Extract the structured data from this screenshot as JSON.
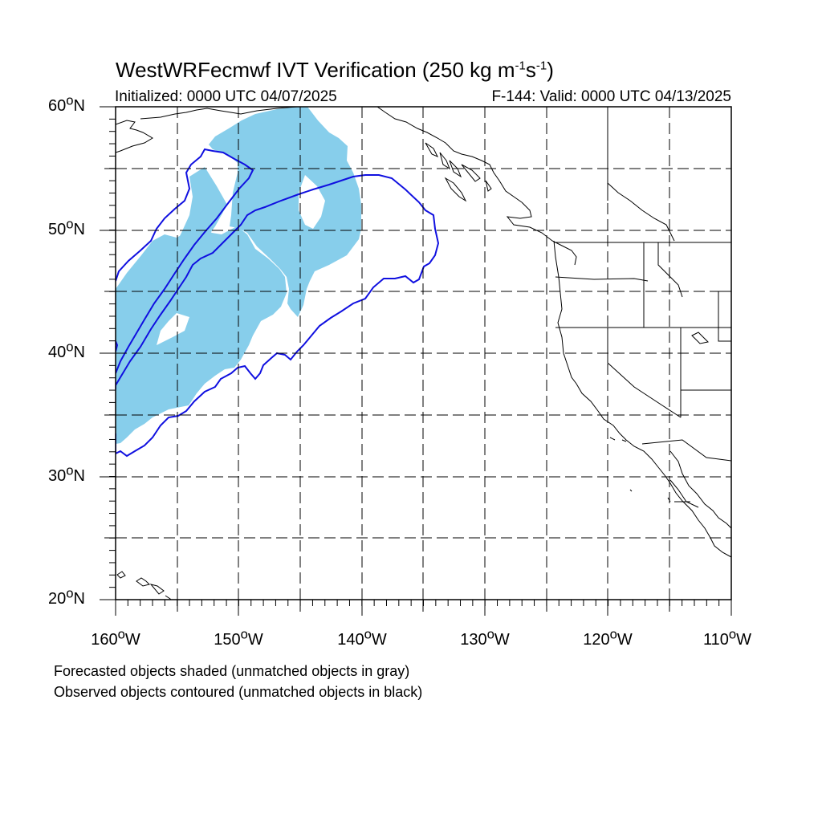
{
  "title": {
    "prefix": "WestWRFecmwf IVT Verification (250 kg m",
    "exp1": "-1",
    "mid": "s",
    "exp2": "-1",
    "suffix": ")"
  },
  "initialized": "Initialized: 0000 UTC 04/07/2025",
  "valid": "F-144: Valid: 0000 UTC 04/13/2025",
  "lat_labels": [
    {
      "deg": "60",
      "suffix": "N"
    },
    {
      "deg": "50",
      "suffix": "N"
    },
    {
      "deg": "40",
      "suffix": "N"
    },
    {
      "deg": "30",
      "suffix": "N"
    },
    {
      "deg": "20",
      "suffix": "N"
    }
  ],
  "lon_labels": [
    {
      "deg": "160",
      "suffix": "W"
    },
    {
      "deg": "150",
      "suffix": "W"
    },
    {
      "deg": "140",
      "suffix": "W"
    },
    {
      "deg": "130",
      "suffix": "W"
    },
    {
      "deg": "120",
      "suffix": "W"
    },
    {
      "deg": "110",
      "suffix": "W"
    }
  ],
  "legend": {
    "forecast_note": "Forecasted objects shaded (unmatched objects in gray)",
    "observed_note": "Observed objects contoured (unmatched objects in black)"
  },
  "colors": {
    "forecast_fill": "#87ceeb",
    "observed_contour": "#1010e0",
    "coastline": "#000000",
    "grid": "#000000"
  },
  "map": {
    "projection": "cylindrical equidistant",
    "lon_range": [
      -160,
      -110
    ],
    "lat_range": [
      20,
      60
    ],
    "grid": "dashed, every 5 degrees"
  }
}
